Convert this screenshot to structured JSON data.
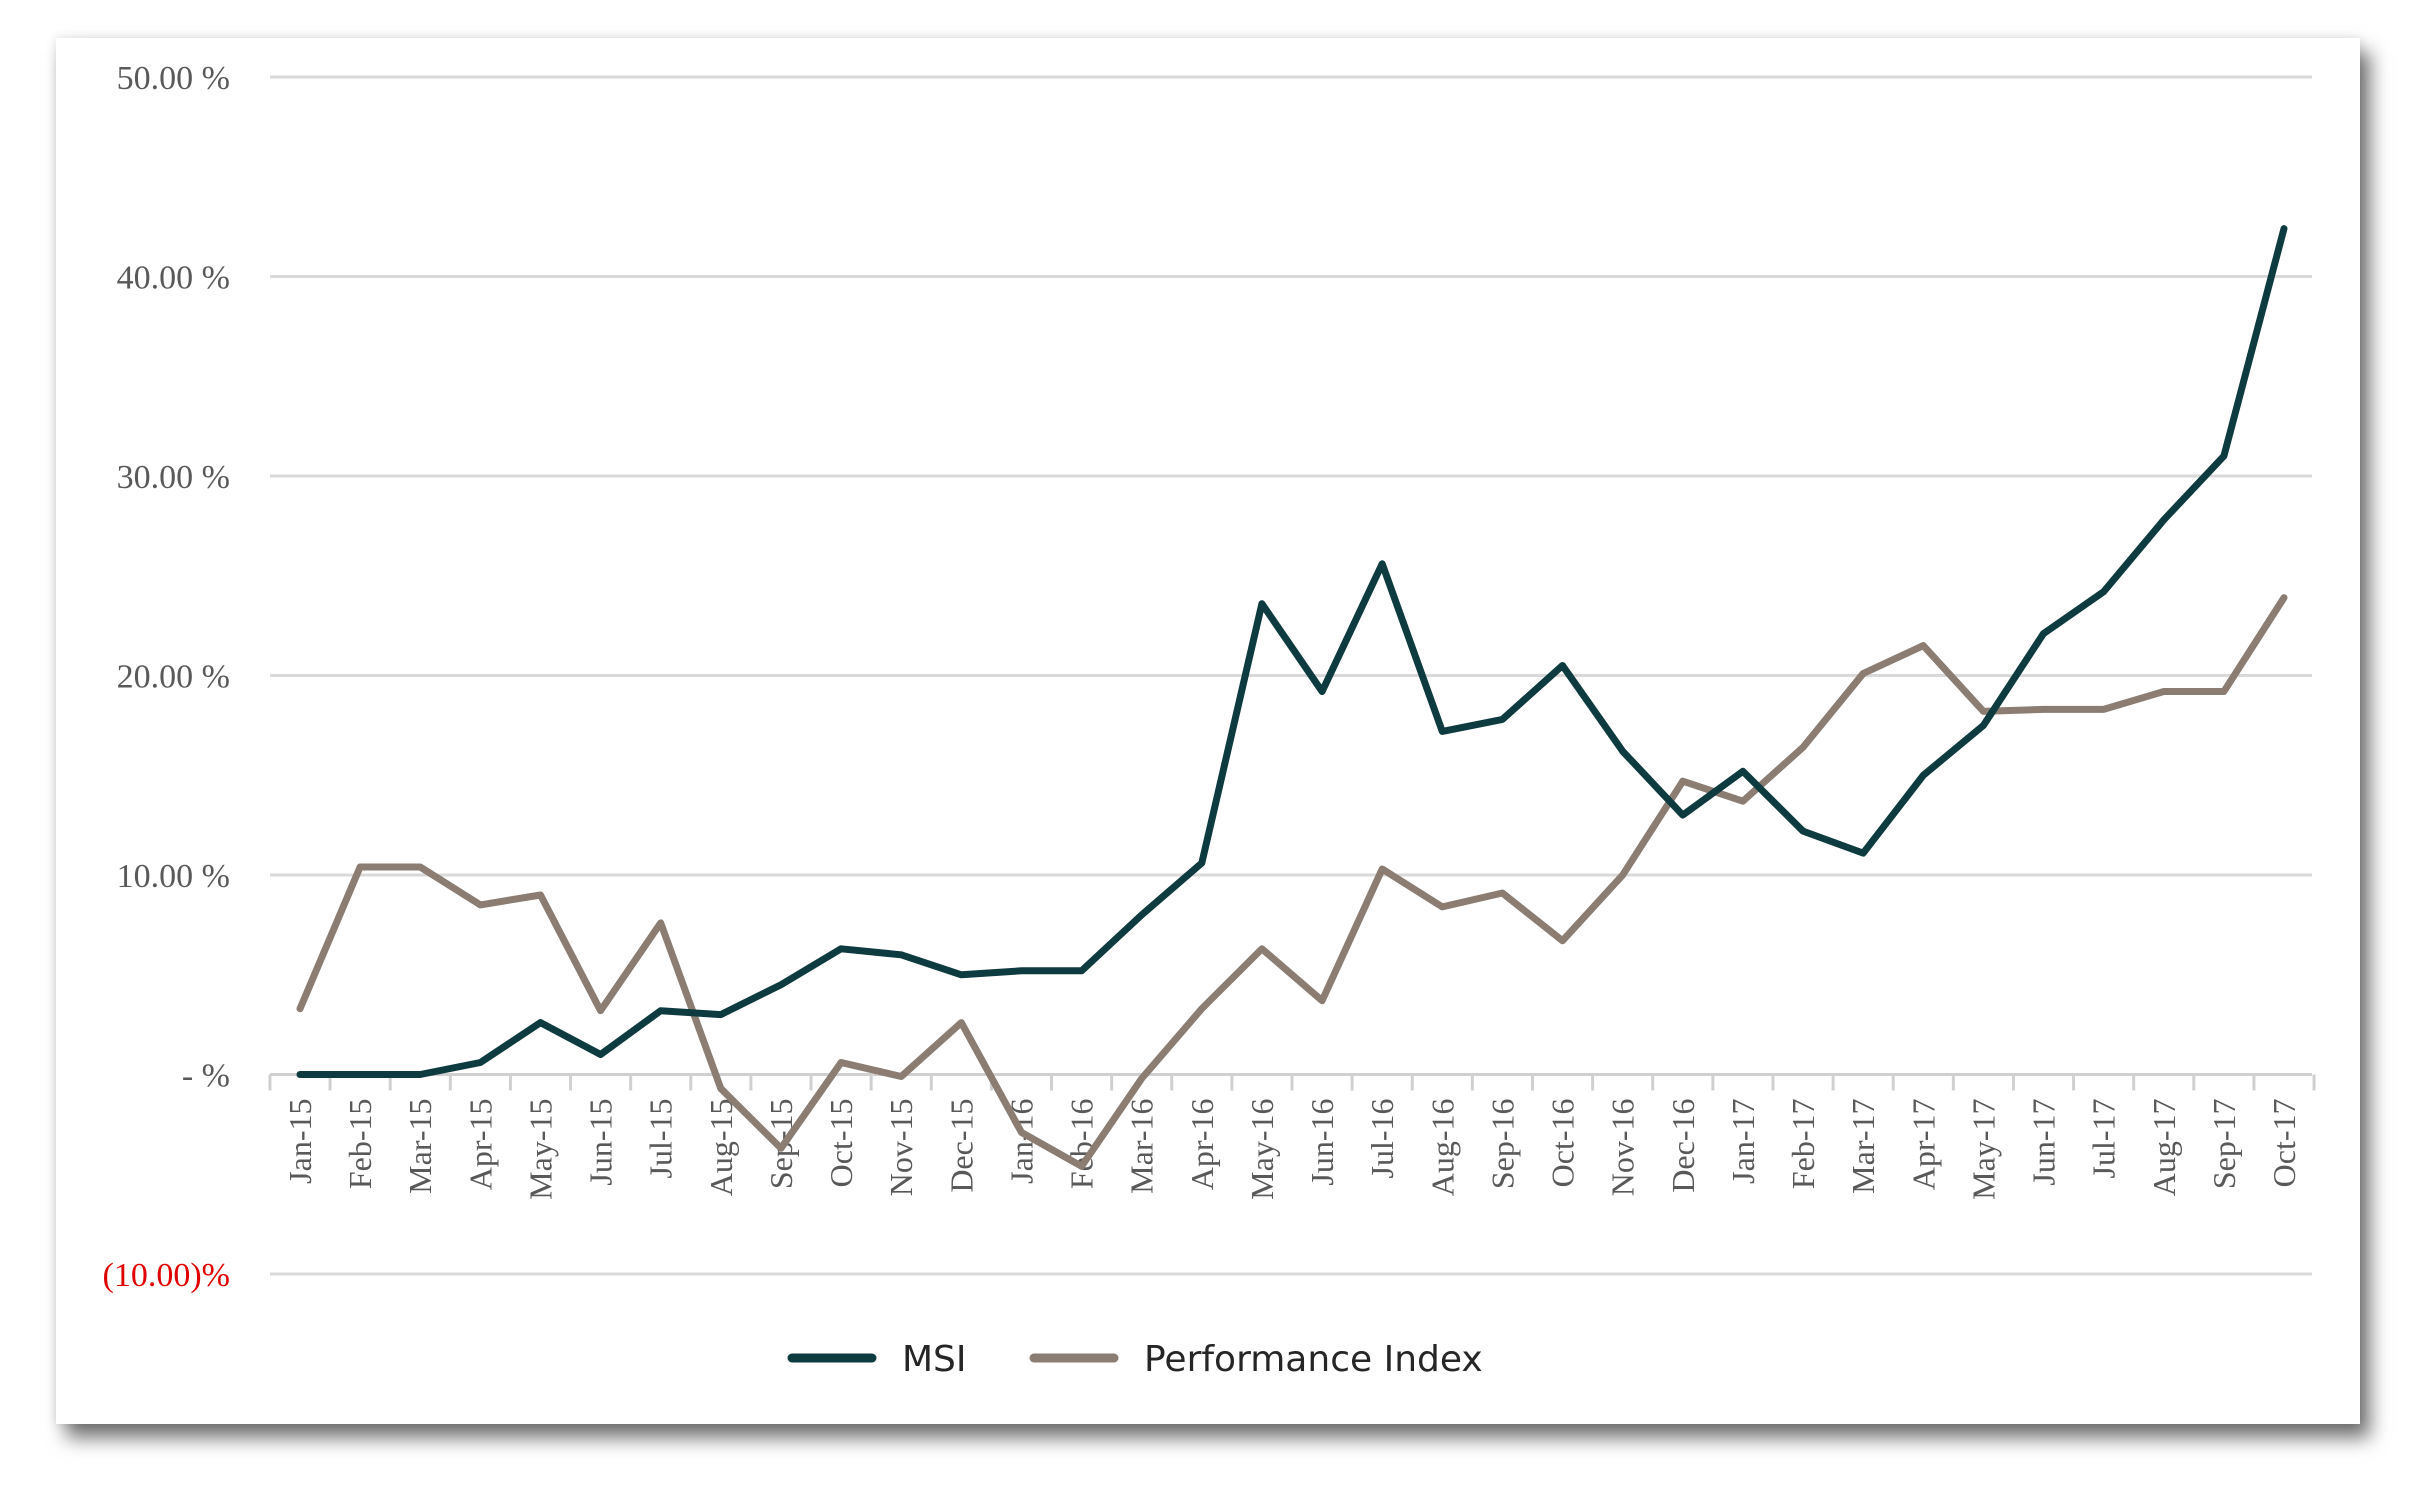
{
  "chart_data": {
    "type": "line",
    "title": "",
    "xlabel": "",
    "ylabel": "",
    "ylim": [
      -10,
      50
    ],
    "yticks": [
      {
        "value": 50,
        "label": "50.00 %"
      },
      {
        "value": 40,
        "label": "40.00 %"
      },
      {
        "value": 30,
        "label": "30.00 %"
      },
      {
        "value": 20,
        "label": "20.00 %"
      },
      {
        "value": 10,
        "label": "10.00 %"
      },
      {
        "value": 0,
        "label": "- %"
      },
      {
        "value": -10,
        "label": "(10.00)%"
      }
    ],
    "grid": true,
    "legend_position": "bottom",
    "categories": [
      "Jan-15",
      "Feb-15",
      "Mar-15",
      "Apr-15",
      "May-15",
      "Jun-15",
      "Jul-15",
      "Aug-15",
      "Sep-15",
      "Oct-15",
      "Nov-15",
      "Dec-15",
      "Jan-16",
      "Feb-16",
      "Mar-16",
      "Apr-16",
      "May-16",
      "Jun-16",
      "Jul-16",
      "Aug-16",
      "Sep-16",
      "Oct-16",
      "Nov-16",
      "Dec-16",
      "Jan-17",
      "Feb-17",
      "Mar-17",
      "Apr-17",
      "May-17",
      "Jun-17",
      "Jul-17",
      "Aug-17",
      "Sep-17",
      "Oct-17"
    ],
    "series": [
      {
        "name": "MSI",
        "color": "#0d3b3f",
        "values": [
          0.0,
          0.0,
          0.0,
          0.6,
          2.6,
          1.0,
          3.2,
          3.0,
          4.5,
          6.3,
          6.0,
          5.0,
          5.2,
          5.2,
          8.0,
          10.6,
          23.6,
          19.2,
          25.6,
          17.2,
          17.8,
          20.5,
          16.2,
          13.0,
          15.2,
          12.2,
          11.1,
          15.0,
          17.5,
          22.1,
          24.2,
          27.8,
          31.0,
          42.4
        ]
      },
      {
        "name": "Performance Index",
        "color": "#8b7d72",
        "values": [
          3.3,
          10.4,
          10.4,
          8.5,
          9.0,
          3.2,
          7.6,
          -0.7,
          -3.7,
          0.6,
          -0.1,
          2.6,
          -2.9,
          -4.6,
          -0.2,
          3.3,
          6.3,
          3.7,
          10.3,
          8.4,
          9.1,
          6.7,
          10.0,
          14.7,
          13.7,
          16.4,
          20.1,
          21.5,
          18.2,
          18.3,
          18.3,
          19.2,
          19.2,
          23.9
        ]
      }
    ]
  }
}
